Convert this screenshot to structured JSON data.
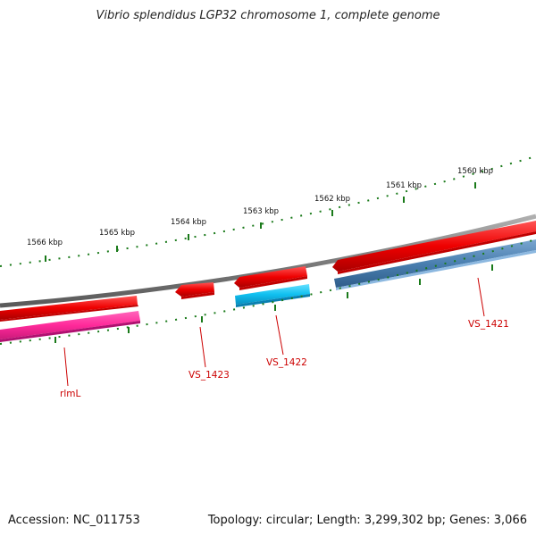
{
  "title": "Vibrio splendidus LGP32 chromosome 1, complete genome",
  "footer": {
    "accession_label": "Accession:",
    "accession": "NC_011753",
    "topology_label": "Topology:",
    "topology": "circular",
    "length_label": "Length:",
    "length": "3,299,302 bp",
    "genes_label": "Genes:",
    "genes": "3,066"
  },
  "scale": {
    "unit": "kbp",
    "ticks": [
      "1566 kbp",
      "1565 kbp",
      "1564 kbp",
      "1563 kbp",
      "1562 kbp",
      "1561 kbp",
      "1560 kbp"
    ]
  },
  "genes": [
    {
      "name": "rlmL",
      "strand": "forward",
      "color": "#ff1a1a",
      "cog_color": "#ff3399"
    },
    {
      "name": "VS_1423",
      "strand": "forward",
      "color": "#ff1a1a"
    },
    {
      "name": "VS_1422",
      "strand": "reverse",
      "color": "#ff1a1a",
      "cog_color": "#22c8ff"
    },
    {
      "name": "VS_1421",
      "strand": "forward",
      "color": "#ff1a1a",
      "cog_color": "#4a7fb0"
    }
  ],
  "colors": {
    "backbone": "#8a8a8a",
    "tick": "#1a7a1a",
    "label": "#cc0000"
  }
}
